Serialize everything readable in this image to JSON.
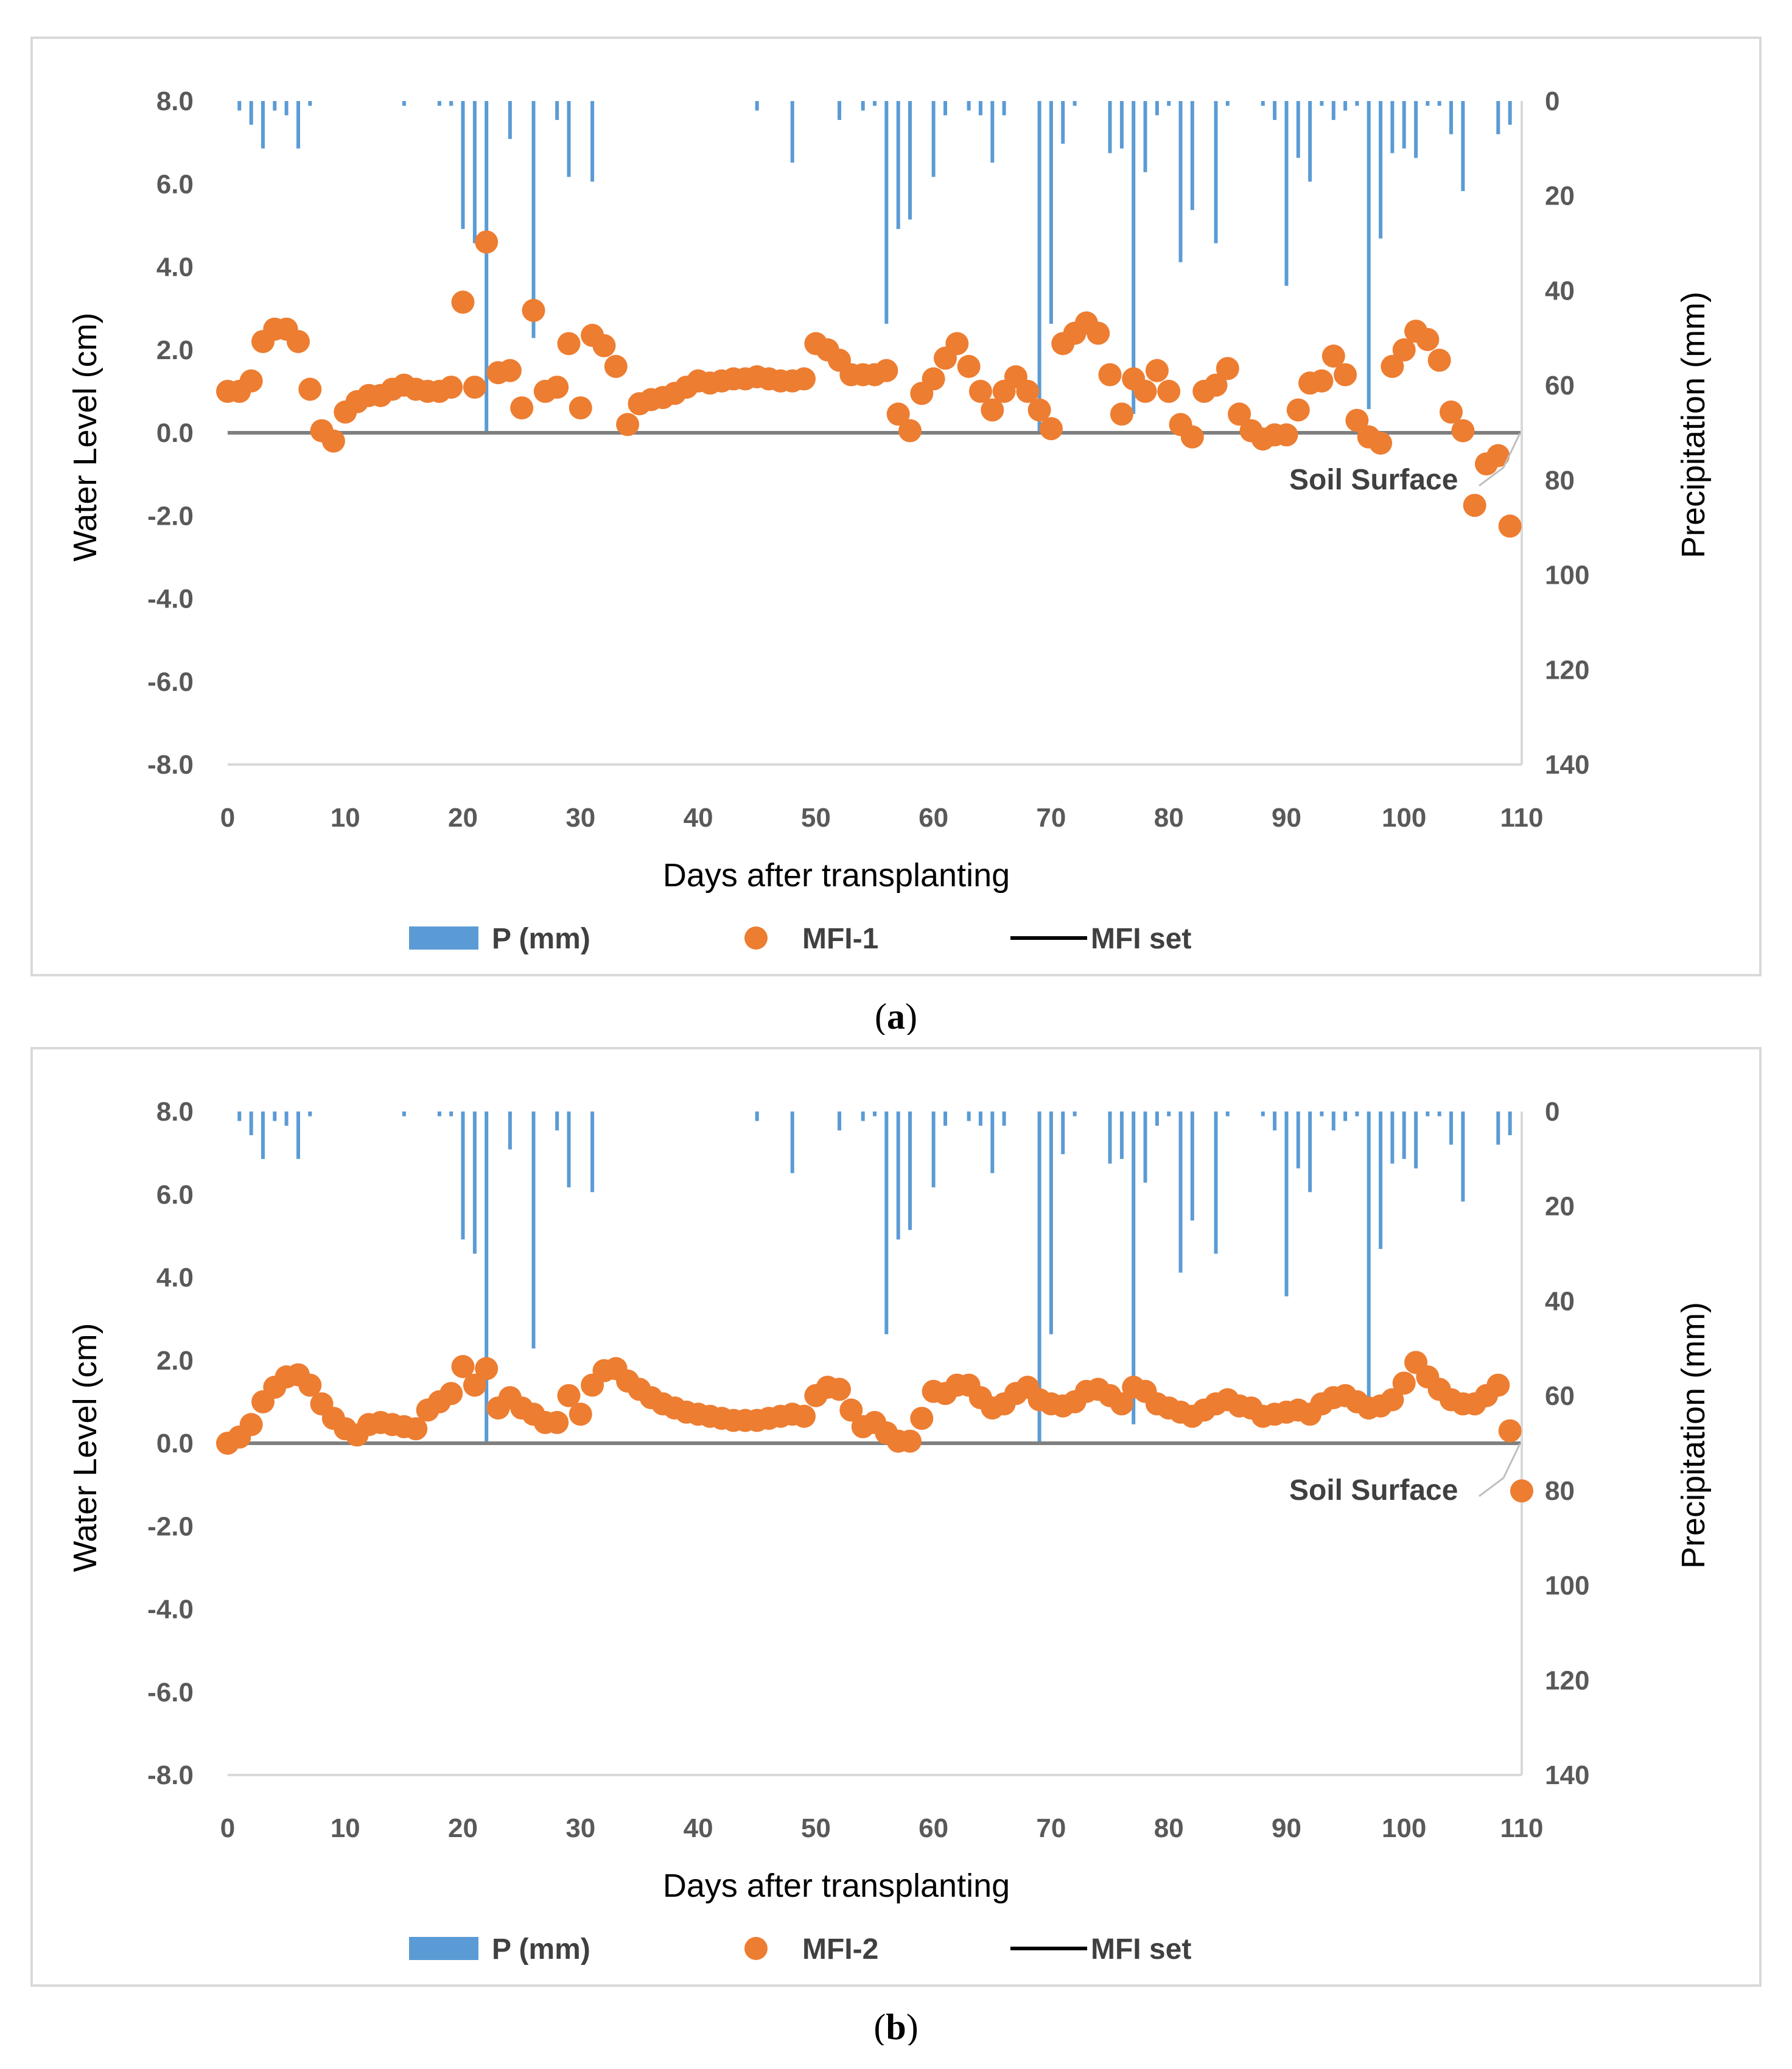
{
  "chart_data": [
    {
      "type": "scatter",
      "panel": "(a)",
      "caption_letter": "a",
      "xlabel": "Days after transplanting",
      "ylabel": "Water Level (cm)",
      "y2label": "Precipitation (mm)",
      "xlim": [
        0,
        110
      ],
      "ylim": [
        -8,
        8
      ],
      "y2lim": [
        0,
        140
      ],
      "xticks": [
        "0",
        "10",
        "20",
        "30",
        "40",
        "50",
        "60",
        "70",
        "80",
        "90",
        "100",
        "110"
      ],
      "yticks": [
        "8.0",
        "6.0",
        "4.0",
        "2.0",
        "0.0",
        "-2.0",
        "-4.0",
        "-6.0",
        "-8.0"
      ],
      "y2ticks": [
        "0",
        "20",
        "40",
        "60",
        "80",
        "100",
        "120",
        "140"
      ],
      "annotation": "Soil Surface",
      "legend": [
        "P (mm)",
        "MFI-1",
        "MFI set"
      ],
      "colors": {
        "precip": "#5b9bd5",
        "series": "#ed7d31",
        "set": "#7f7f7f",
        "legend_line": "#000000"
      },
      "precip": {
        "x": [
          1,
          2,
          3,
          4,
          5,
          6,
          7,
          15,
          18,
          19,
          20,
          21,
          22,
          24,
          26,
          28,
          29,
          31,
          45,
          48,
          52,
          54,
          55,
          56,
          57,
          58,
          60,
          61,
          63,
          64,
          65,
          66,
          69,
          70,
          71,
          72,
          75,
          76,
          77,
          78,
          79,
          80,
          81,
          82,
          84,
          85,
          88,
          89,
          90,
          91,
          92,
          93,
          94,
          95,
          96,
          97,
          98,
          99,
          100,
          101,
          102,
          103,
          104,
          105,
          108,
          109
        ],
        "mm": [
          2,
          5,
          10,
          2,
          3,
          10,
          1,
          1,
          1,
          1,
          27,
          30,
          70,
          8,
          50,
          4,
          16,
          17,
          2,
          13,
          4,
          2,
          1,
          47,
          27,
          25,
          16,
          3,
          2,
          3,
          13,
          3,
          70,
          47,
          9,
          1,
          11,
          10,
          66,
          15,
          3,
          1,
          34,
          23,
          30,
          1,
          1,
          4,
          39,
          12,
          17,
          1,
          4,
          2,
          1,
          65,
          29,
          11,
          10,
          12,
          1,
          1,
          7,
          19,
          7,
          5
        ]
      },
      "series": {
        "name": "MFI-1",
        "x": [
          0,
          1,
          2,
          3,
          4,
          5,
          6,
          7,
          8,
          9,
          10,
          11,
          12,
          13,
          14,
          15,
          16,
          17,
          18,
          19,
          20,
          21,
          22,
          23,
          24,
          25,
          26,
          27,
          28,
          29,
          30,
          31,
          32,
          33,
          34,
          35,
          36,
          37,
          38,
          39,
          40,
          41,
          42,
          43,
          44,
          45,
          46,
          47,
          48,
          49,
          50,
          51,
          52,
          53,
          54,
          55,
          56,
          57,
          58,
          59,
          60,
          61,
          62,
          63,
          64,
          65,
          66,
          67,
          68,
          69,
          70,
          71,
          72,
          73,
          74,
          75,
          76,
          77,
          78,
          79,
          80,
          81,
          82,
          83,
          84,
          85,
          86,
          87,
          88,
          89,
          90,
          91,
          92,
          93,
          94,
          95,
          96,
          97,
          98,
          99,
          100,
          101,
          102,
          103,
          104,
          105,
          106,
          107,
          108,
          109
        ],
        "y": [
          1.0,
          1.0,
          1.25,
          2.2,
          2.5,
          2.5,
          2.2,
          1.05,
          0.05,
          -0.2,
          0.5,
          0.75,
          0.9,
          0.9,
          1.05,
          1.15,
          1.05,
          1.0,
          1.0,
          1.1,
          3.15,
          1.1,
          4.6,
          1.45,
          1.5,
          0.6,
          2.95,
          1.0,
          1.1,
          2.15,
          0.6,
          2.35,
          2.1,
          1.6,
          0.2,
          0.7,
          0.8,
          0.85,
          0.95,
          1.1,
          1.25,
          1.2,
          1.25,
          1.3,
          1.3,
          1.35,
          1.3,
          1.25,
          1.25,
          1.3,
          2.15,
          2.0,
          1.75,
          1.4,
          1.4,
          1.4,
          1.5,
          0.45,
          0.05,
          0.95,
          1.3,
          1.8,
          2.15,
          1.6,
          1.0,
          0.55,
          1.0,
          1.35,
          1.0,
          0.55,
          0.1,
          2.15,
          2.4,
          2.65,
          2.4,
          1.4,
          0.45,
          1.3,
          1.0,
          1.5,
          1.0,
          0.2,
          -0.1,
          1.0,
          1.15,
          1.55,
          0.45,
          0.05,
          -0.15,
          -0.05,
          -0.05,
          0.55,
          1.2,
          1.25,
          1.85,
          1.4,
          0.3,
          -0.1,
          -0.25,
          1.6,
          2.0,
          2.45,
          2.25,
          1.75,
          0.5,
          0.05,
          -1.75,
          -0.75,
          -0.55,
          -2.25
        ]
      }
    },
    {
      "type": "scatter",
      "panel": "(b)",
      "caption_letter": "b",
      "xlabel": "Days after transplanting",
      "ylabel": "Water Level (cm)",
      "y2label": "Precipitation (mm)",
      "xlim": [
        0,
        110
      ],
      "ylim": [
        -8,
        8
      ],
      "y2lim": [
        0,
        140
      ],
      "xticks": [
        "0",
        "10",
        "20",
        "30",
        "40",
        "50",
        "60",
        "70",
        "80",
        "90",
        "100",
        "110"
      ],
      "yticks": [
        "8.0",
        "6.0",
        "4.0",
        "2.0",
        "0.0",
        "-2.0",
        "-4.0",
        "-6.0",
        "-8.0"
      ],
      "y2ticks": [
        "0",
        "20",
        "40",
        "60",
        "80",
        "100",
        "120",
        "140"
      ],
      "annotation": "Soil Surface",
      "legend": [
        "P (mm)",
        "MFI-2",
        "MFI set"
      ],
      "colors": {
        "precip": "#5b9bd5",
        "series": "#ed7d31",
        "set": "#7f7f7f",
        "legend_line": "#000000"
      },
      "precip": {
        "x": [
          1,
          2,
          3,
          4,
          5,
          6,
          7,
          15,
          18,
          19,
          20,
          21,
          22,
          24,
          26,
          28,
          29,
          31,
          45,
          48,
          52,
          54,
          55,
          56,
          57,
          58,
          60,
          61,
          63,
          64,
          65,
          66,
          69,
          70,
          71,
          72,
          75,
          76,
          77,
          78,
          79,
          80,
          81,
          82,
          84,
          85,
          88,
          89,
          90,
          91,
          92,
          93,
          94,
          95,
          96,
          97,
          98,
          99,
          100,
          101,
          102,
          103,
          104,
          105,
          108,
          109
        ],
        "mm": [
          2,
          5,
          10,
          2,
          3,
          10,
          1,
          1,
          1,
          1,
          27,
          30,
          70,
          8,
          50,
          4,
          16,
          17,
          2,
          13,
          4,
          2,
          1,
          47,
          27,
          25,
          16,
          3,
          2,
          3,
          13,
          3,
          70,
          47,
          9,
          1,
          11,
          10,
          66,
          15,
          3,
          1,
          34,
          23,
          30,
          1,
          1,
          4,
          39,
          12,
          17,
          1,
          4,
          2,
          1,
          65,
          29,
          11,
          10,
          12,
          1,
          1,
          7,
          19,
          7,
          5
        ]
      },
      "series": {
        "name": "MFI-2",
        "x": [
          0,
          1,
          2,
          3,
          4,
          5,
          6,
          7,
          8,
          9,
          10,
          11,
          12,
          13,
          14,
          15,
          16,
          17,
          18,
          19,
          20,
          21,
          22,
          23,
          24,
          25,
          26,
          27,
          28,
          29,
          30,
          31,
          32,
          33,
          34,
          35,
          36,
          37,
          38,
          39,
          40,
          41,
          42,
          43,
          44,
          45,
          46,
          47,
          48,
          49,
          50,
          51,
          52,
          53,
          54,
          55,
          56,
          57,
          58,
          59,
          60,
          61,
          62,
          63,
          64,
          65,
          66,
          67,
          68,
          69,
          70,
          71,
          72,
          73,
          74,
          75,
          76,
          77,
          78,
          79,
          80,
          81,
          82,
          83,
          84,
          85,
          86,
          87,
          88,
          89,
          90,
          91,
          92,
          93,
          94,
          95,
          96,
          97,
          98,
          99,
          100,
          101,
          102,
          103,
          104,
          105,
          106,
          107,
          108,
          109,
          110
        ],
        "y": [
          0.0,
          0.15,
          0.45,
          1.0,
          1.35,
          1.6,
          1.65,
          1.4,
          0.95,
          0.6,
          0.35,
          0.2,
          0.45,
          0.5,
          0.45,
          0.4,
          0.35,
          0.8,
          1.0,
          1.2,
          1.85,
          1.4,
          1.8,
          0.85,
          1.1,
          0.85,
          0.7,
          0.5,
          0.5,
          1.15,
          0.7,
          1.4,
          1.75,
          1.8,
          1.5,
          1.3,
          1.1,
          0.95,
          0.85,
          0.75,
          0.7,
          0.65,
          0.6,
          0.55,
          0.55,
          0.55,
          0.6,
          0.65,
          0.7,
          0.65,
          1.15,
          1.35,
          1.3,
          0.8,
          0.4,
          0.5,
          0.25,
          0.05,
          0.05,
          0.6,
          1.25,
          1.2,
          1.4,
          1.4,
          1.1,
          0.85,
          0.95,
          1.2,
          1.35,
          1.05,
          0.95,
          0.9,
          1.0,
          1.25,
          1.3,
          1.15,
          0.95,
          1.35,
          1.25,
          0.95,
          0.85,
          0.75,
          0.65,
          0.8,
          0.95,
          1.05,
          0.9,
          0.85,
          0.65,
          0.7,
          0.75,
          0.8,
          0.7,
          0.95,
          1.1,
          1.15,
          1.0,
          0.85,
          0.9,
          1.05,
          1.45,
          1.95,
          1.6,
          1.3,
          1.05,
          0.95,
          0.95,
          1.15,
          1.4,
          0.3,
          -1.15
        ]
      }
    }
  ]
}
